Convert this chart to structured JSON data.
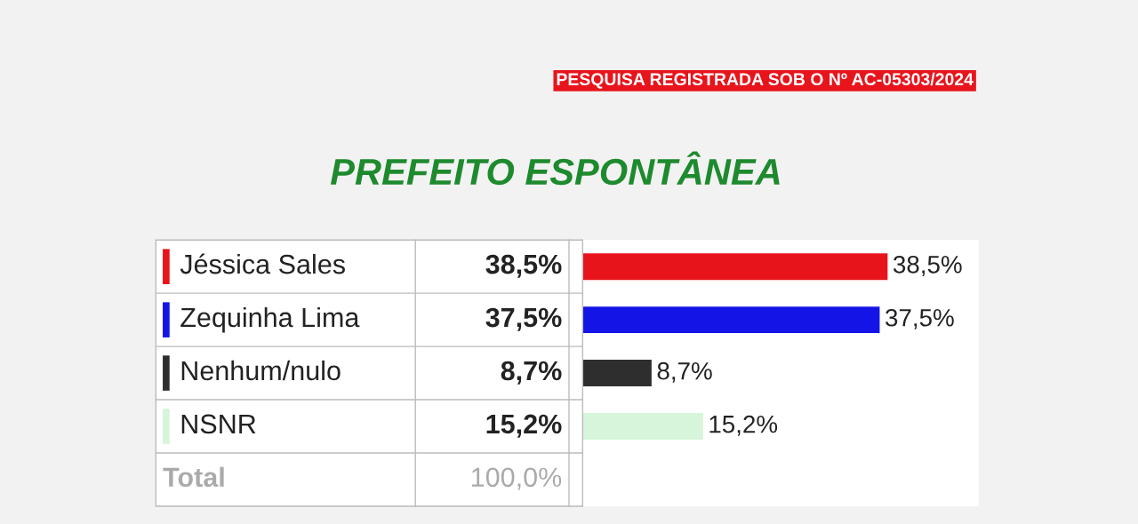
{
  "chart_data": {
    "type": "bar",
    "orientation": "horizontal",
    "title": "PREFEITO ESPONTÂNEA",
    "annotations": [
      "PESQUISA REGISTRADA SOB O Nº AC-05303/2024",
      "Total",
      "100,0%"
    ],
    "categories": [
      "Jéssica Sales",
      "Zequinha Lima",
      "Nenhum/nulo",
      "NSNR"
    ],
    "values": [
      38.5,
      37.5,
      8.7,
      15.2
    ],
    "value_labels": [
      "38,5%",
      "37,5%",
      "8,7%",
      "15,2%"
    ],
    "colors": [
      "#e8141c",
      "#1414e6",
      "#2e2e2e",
      "#d6f5da"
    ],
    "xlim": [
      0,
      50
    ],
    "tick_labels": false
  }
}
